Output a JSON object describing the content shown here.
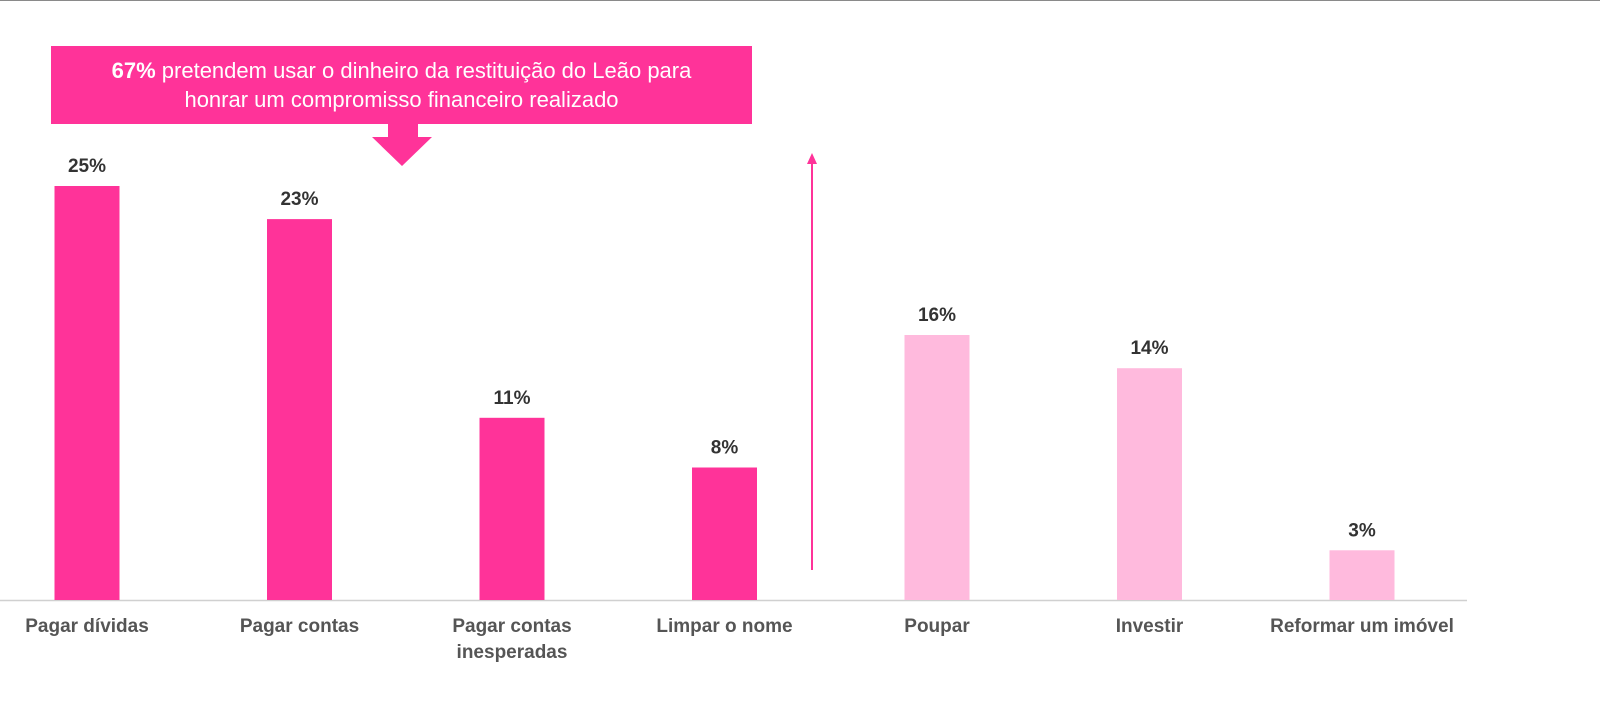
{
  "callout": {
    "highlight": "67%",
    "text": " pretendem usar o dinheiro da restituição do Leão para honrar um compromisso financeiro realizado"
  },
  "colors": {
    "primary": "#ff3399",
    "secondary": "#ffbadd",
    "label": "#555555",
    "value_label": "#333333",
    "axis": "#d0d0d0"
  },
  "chart_data": {
    "type": "bar",
    "title": "",
    "xlabel": "",
    "ylabel": "",
    "ylim": [
      0,
      27
    ],
    "grid": false,
    "categories": [
      "Pagar dívidas",
      "Pagar contas",
      "Pagar contas inesperadas",
      "Limpar o nome",
      "Poupar",
      "Investir",
      "Reformar um imóvel"
    ],
    "values": [
      25,
      23,
      11,
      8,
      16,
      14,
      3
    ],
    "value_labels": [
      "25%",
      "23%",
      "11%",
      "8%",
      "16%",
      "14%",
      "3%"
    ],
    "bar_colors": [
      "#ff3399",
      "#ff3399",
      "#ff3399",
      "#ff3399",
      "#ffbadd",
      "#ffbadd",
      "#ffbadd"
    ]
  }
}
